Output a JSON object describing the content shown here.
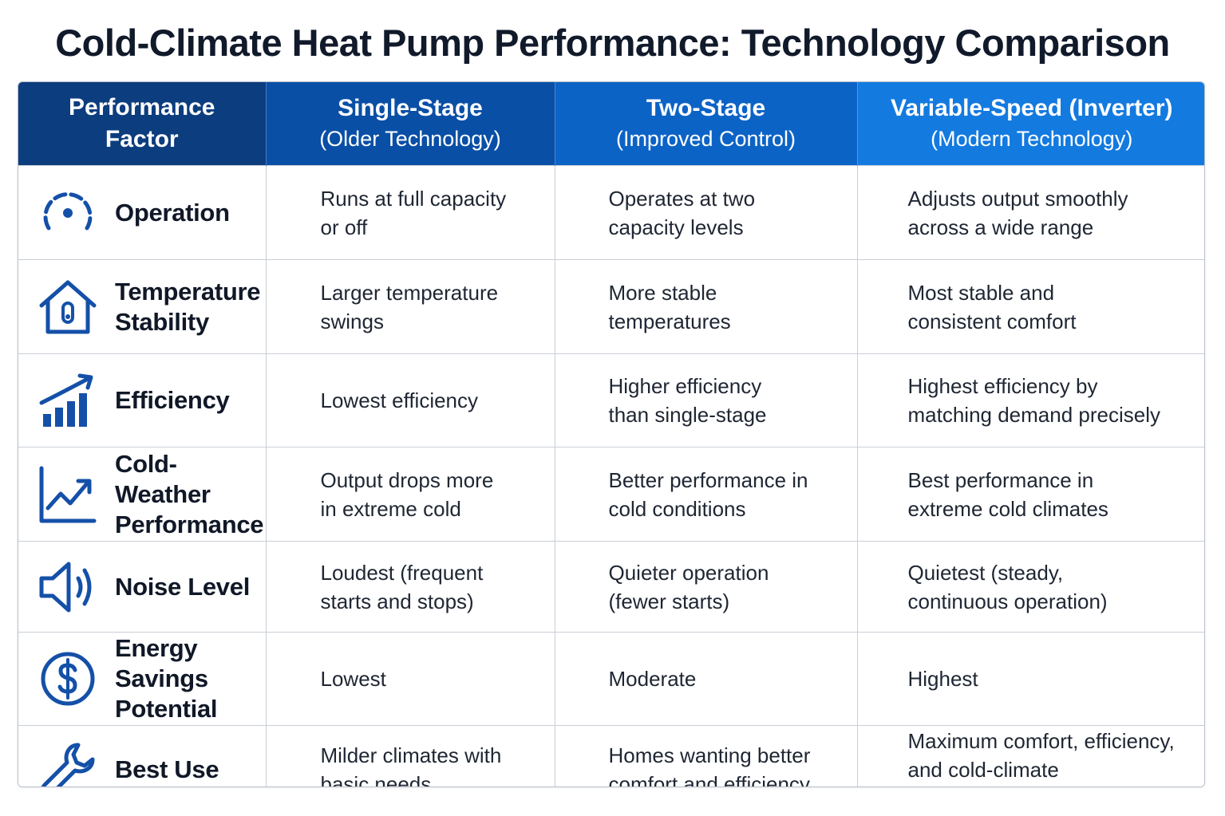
{
  "title": "Cold-Climate Heat Pump Performance: Technology Comparison",
  "colors": {
    "header_col1": "#0c3d7e",
    "header_col2": "#0a4fa6",
    "header_col3": "#0c63c6",
    "header_col4": "#137ae0",
    "icon_blue": "#1450a8"
  },
  "headers": {
    "factor": "Performance Factor",
    "single": {
      "title": "Single-Stage",
      "subtitle": "(Older Technology)"
    },
    "two": {
      "title": "Two-Stage",
      "subtitle": "(Improved Control)"
    },
    "variable": {
      "title": "Variable-Speed (Inverter)",
      "subtitle": "(Modern Technology)"
    }
  },
  "rows": [
    {
      "factor": "Operation",
      "icon": "gauge-icon",
      "single": "Runs at full capacity or off",
      "two": "Operates at two capacity levels",
      "variable": "Adjusts output smoothly across a wide range"
    },
    {
      "factor": "Temperature Stability",
      "icon": "house-thermometer-icon",
      "single": "Larger temperature swings",
      "two": "More stable temperatures",
      "variable": "Most stable and consistent comfort"
    },
    {
      "factor": "Efficiency",
      "icon": "bar-chart-trend-icon",
      "single": "Lowest efficiency",
      "two": "Higher efficiency than single-stage",
      "variable": "Highest efficiency by matching demand precisely"
    },
    {
      "factor": "Cold-Weather Performance",
      "icon": "line-chart-icon",
      "single": "Output drops more in extreme cold",
      "two": "Better performance in cold conditions",
      "variable": "Best performance in extreme cold climates"
    },
    {
      "factor": "Noise Level",
      "icon": "speaker-icon",
      "single": "Loudest (frequent starts and stops)",
      "two": "Quieter operation (fewer starts)",
      "variable": "Quietest (steady, continuous operation)"
    },
    {
      "factor": "Energy Savings Potential",
      "icon": "dollar-icon",
      "single": "Lowest",
      "two": "Moderate",
      "variable": "Highest"
    },
    {
      "factor": "Best Use",
      "icon": "wrench-icon",
      "single": "Milder climates with basic needs",
      "two": "Homes wanting better comfort and efficiency",
      "variable": "Maximum comfort, efficiency, and cold-climate performance"
    }
  ]
}
